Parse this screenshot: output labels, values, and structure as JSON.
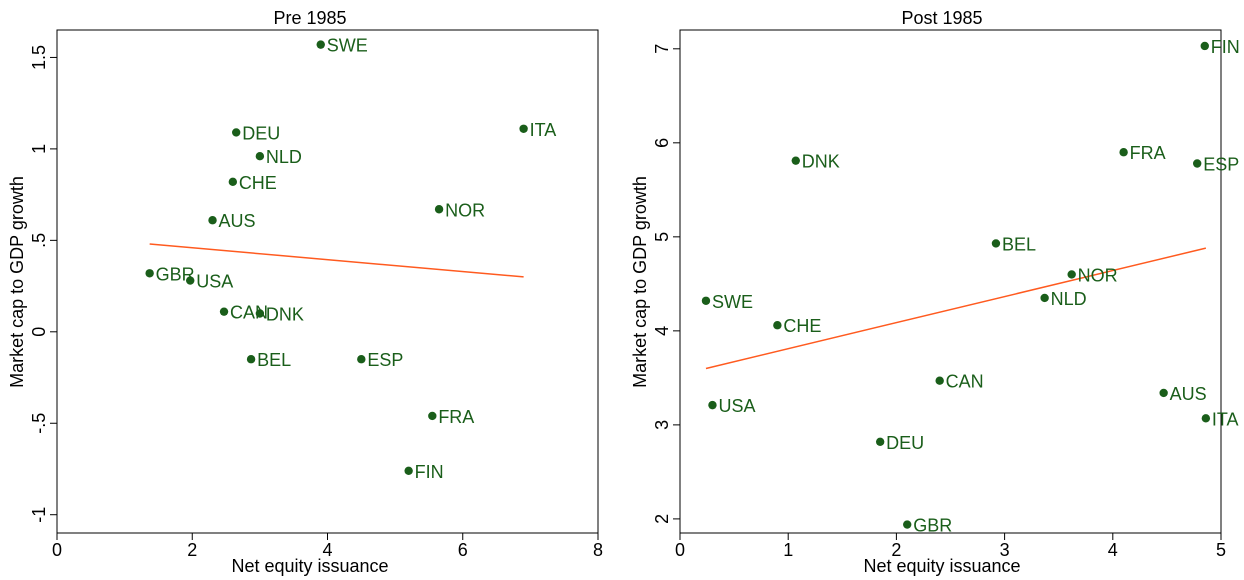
{
  "chart_data": [
    {
      "type": "scatter",
      "title": "Pre 1985",
      "xlabel": "Net equity issuance",
      "ylabel": "Market cap to GDP growth",
      "xlim": [
        0,
        8
      ],
      "ylim": [
        -1.1,
        1.65
      ],
      "xticks": [
        0,
        2,
        4,
        6,
        8
      ],
      "yticks": [
        -1,
        -0.5,
        0,
        0.5,
        1,
        1.5
      ],
      "ytick_labels": [
        "-1",
        "-.5",
        "0",
        ".5",
        "1",
        "1.5"
      ],
      "grid": false,
      "point_color": "#1a5e1a",
      "fit_color": "#ff5a1f",
      "points": [
        {
          "label": "SWE",
          "x": 3.9,
          "y": 1.57
        },
        {
          "label": "ITA",
          "x": 6.9,
          "y": 1.11
        },
        {
          "label": "DEU",
          "x": 2.65,
          "y": 1.09
        },
        {
          "label": "NLD",
          "x": 3.0,
          "y": 0.96
        },
        {
          "label": "CHE",
          "x": 2.6,
          "y": 0.82
        },
        {
          "label": "NOR",
          "x": 5.65,
          "y": 0.67
        },
        {
          "label": "AUS",
          "x": 2.3,
          "y": 0.61
        },
        {
          "label": "GBR",
          "x": 1.37,
          "y": 0.32
        },
        {
          "label": "USA",
          "x": 1.97,
          "y": 0.28
        },
        {
          "label": "CAN",
          "x": 2.47,
          "y": 0.11
        },
        {
          "label": "DNK",
          "x": 3.0,
          "y": 0.1
        },
        {
          "label": "BEL",
          "x": 2.87,
          "y": -0.15
        },
        {
          "label": "ESP",
          "x": 4.5,
          "y": -0.15
        },
        {
          "label": "FRA",
          "x": 5.55,
          "y": -0.46
        },
        {
          "label": "FIN",
          "x": 5.2,
          "y": -0.76
        }
      ],
      "fit_line": {
        "x": [
          1.37,
          6.9
        ],
        "y": [
          0.48,
          0.3
        ]
      }
    },
    {
      "type": "scatter",
      "title": "Post 1985",
      "xlabel": "Net equity issuance",
      "ylabel": "Market cap to GDP growth",
      "xlim": [
        0,
        5
      ],
      "ylim": [
        1.85,
        7.2
      ],
      "xticks": [
        0,
        1,
        2,
        3,
        4,
        5
      ],
      "yticks": [
        2,
        3,
        4,
        5,
        6,
        7
      ],
      "ytick_labels": [
        "2",
        "3",
        "4",
        "5",
        "6",
        "7"
      ],
      "grid": false,
      "point_color": "#1a5e1a",
      "fit_color": "#ff5a1f",
      "points": [
        {
          "label": "FIN",
          "x": 4.85,
          "y": 7.03
        },
        {
          "label": "FRA",
          "x": 4.1,
          "y": 5.9
        },
        {
          "label": "DNK",
          "x": 1.07,
          "y": 5.81
        },
        {
          "label": "ESP",
          "x": 4.78,
          "y": 5.78
        },
        {
          "label": "BEL",
          "x": 2.92,
          "y": 4.93
        },
        {
          "label": "NOR",
          "x": 3.62,
          "y": 4.6
        },
        {
          "label": "NLD",
          "x": 3.37,
          "y": 4.35
        },
        {
          "label": "SWE",
          "x": 0.24,
          "y": 4.32
        },
        {
          "label": "CHE",
          "x": 0.9,
          "y": 4.06
        },
        {
          "label": "CAN",
          "x": 2.4,
          "y": 3.47
        },
        {
          "label": "AUS",
          "x": 4.47,
          "y": 3.34
        },
        {
          "label": "USA",
          "x": 0.3,
          "y": 3.21
        },
        {
          "label": "ITA",
          "x": 4.86,
          "y": 3.07
        },
        {
          "label": "DEU",
          "x": 1.85,
          "y": 2.82
        },
        {
          "label": "GBR",
          "x": 2.1,
          "y": 1.94
        }
      ],
      "fit_line": {
        "x": [
          0.24,
          4.86
        ],
        "y": [
          3.6,
          4.88
        ]
      }
    }
  ]
}
